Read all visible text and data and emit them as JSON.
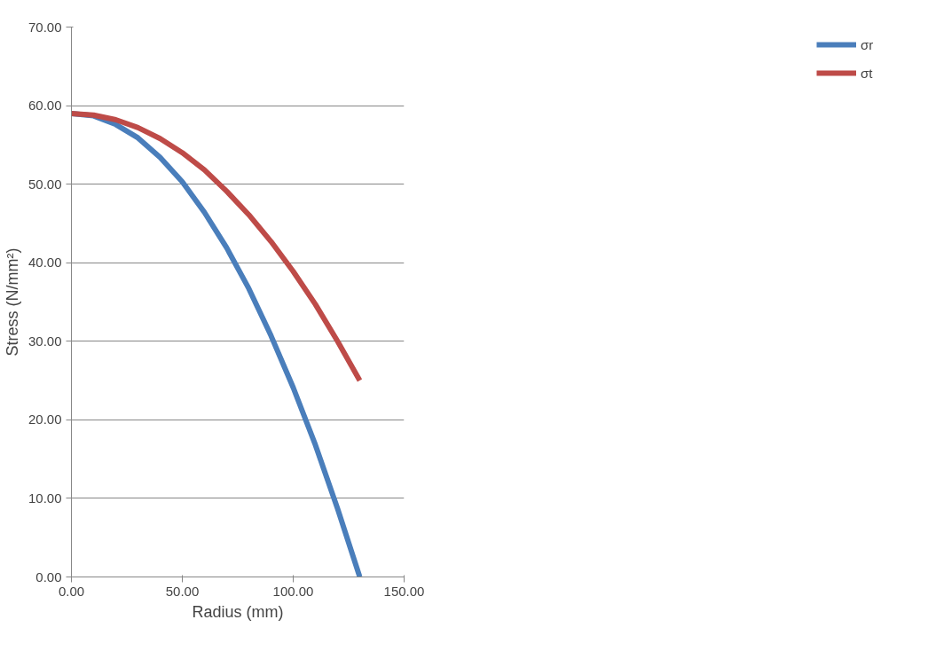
{
  "chart_data": {
    "type": "line",
    "xlabel": "Radius (mm)",
    "ylabel": "Stress (N/mm²)",
    "x": [
      0,
      10,
      20,
      30,
      40,
      50,
      60,
      70,
      80,
      90,
      100,
      110,
      120,
      130
    ],
    "series": [
      {
        "name": "σr",
        "color": "#4a7ebb",
        "values": [
          59,
          58.7,
          57.6,
          55.9,
          53.4,
          50.3,
          46.4,
          41.9,
          36.7,
          30.7,
          24.1,
          16.8,
          8.7,
          0
        ]
      },
      {
        "name": "σt",
        "color": "#be4b48",
        "values": [
          59,
          58.8,
          58.2,
          57.2,
          55.8,
          54.0,
          51.8,
          49.1,
          46.1,
          42.7,
          38.9,
          34.7,
          30.0,
          25.0
        ]
      }
    ],
    "xlim": [
      0,
      150
    ],
    "ylim": [
      0,
      70
    ],
    "xticks": [
      {
        "value": 0,
        "label": "0.00"
      },
      {
        "value": 50,
        "label": "50.00"
      },
      {
        "value": 100,
        "label": "100.00"
      },
      {
        "value": 150,
        "label": "150.00"
      }
    ],
    "yticks": [
      {
        "value": 0,
        "label": "0.00"
      },
      {
        "value": 10,
        "label": "10.00"
      },
      {
        "value": 20,
        "label": "20.00"
      },
      {
        "value": 30,
        "label": "30.00"
      },
      {
        "value": 40,
        "label": "40.00"
      },
      {
        "value": 50,
        "label": "50.00"
      },
      {
        "value": 60,
        "label": "60.00"
      },
      {
        "value": 70,
        "label": "70.00"
      }
    ],
    "grid": "y",
    "legend": "right",
    "marker": "none",
    "line_style": "solid"
  }
}
